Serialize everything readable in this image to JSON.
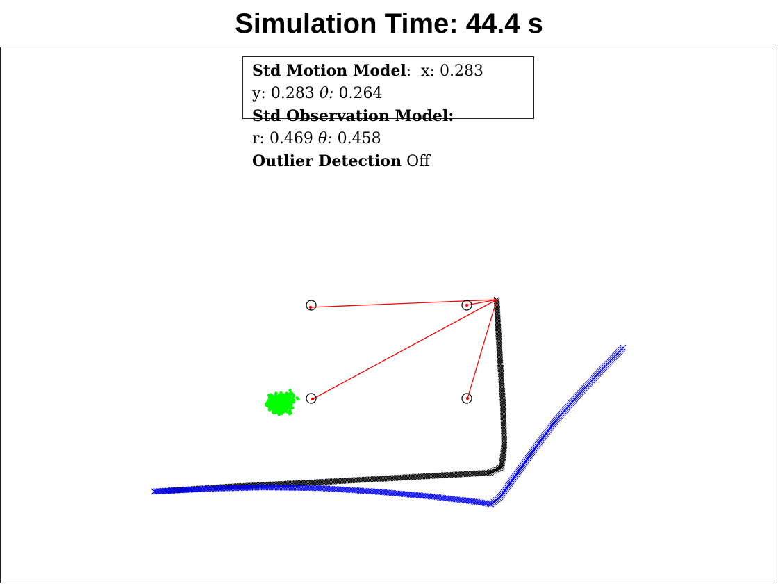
{
  "title": "Simulation Time: 44.4 s",
  "info": {
    "motion_label": "Std Motion Model",
    "motion_x_label": "x:",
    "motion_x": "0.283",
    "motion_y_label": "y:",
    "motion_y": "0.283",
    "motion_theta_label": "θ:",
    "motion_theta": "0.264",
    "observation_label": "Std Observation Model:",
    "obs_r_label": "r:",
    "obs_r": "0.469",
    "obs_theta_label": "θ:",
    "obs_theta": "0.458",
    "outlier_label": "Outlier Detection",
    "outlier_value": "Off"
  },
  "colors": {
    "estimate": "#0000ff",
    "ground_truth": "#000000",
    "observation": "#ff0000",
    "particles": "#00ff00",
    "landmark": "#000000"
  },
  "chart_data": {
    "type": "scatter",
    "xlim": [
      0,
      1120
    ],
    "ylim": [
      840,
      67
    ],
    "grid": false,
    "landmarks": [
      {
        "x": 448,
        "y": 439
      },
      {
        "x": 672,
        "y": 439
      },
      {
        "x": 448,
        "y": 573
      },
      {
        "x": 672,
        "y": 573
      }
    ],
    "robot_position": {
      "x": 715,
      "y": 431
    },
    "observations": [
      {
        "x": 447,
        "y": 442
      },
      {
        "x": 672,
        "y": 439
      },
      {
        "x": 450,
        "y": 574
      },
      {
        "x": 673,
        "y": 573
      }
    ],
    "particle_cloud": {
      "center_x": 404,
      "center_y": 580,
      "spread_x": 34,
      "spread_y": 22,
      "count": 500
    },
    "ground_truth_path": [
      {
        "x": 222,
        "y": 707
      },
      {
        "x": 330,
        "y": 700
      },
      {
        "x": 450,
        "y": 694
      },
      {
        "x": 560,
        "y": 688
      },
      {
        "x": 650,
        "y": 683
      },
      {
        "x": 705,
        "y": 680
      },
      {
        "x": 722,
        "y": 672
      },
      {
        "x": 726,
        "y": 640
      },
      {
        "x": 724,
        "y": 580
      },
      {
        "x": 720,
        "y": 520
      },
      {
        "x": 717,
        "y": 470
      },
      {
        "x": 715,
        "y": 431
      }
    ],
    "estimate_path": [
      {
        "x": 222,
        "y": 707
      },
      {
        "x": 300,
        "y": 703
      },
      {
        "x": 380,
        "y": 701
      },
      {
        "x": 460,
        "y": 702
      },
      {
        "x": 540,
        "y": 707
      },
      {
        "x": 620,
        "y": 714
      },
      {
        "x": 680,
        "y": 721
      },
      {
        "x": 707,
        "y": 725
      },
      {
        "x": 720,
        "y": 715
      },
      {
        "x": 745,
        "y": 680
      },
      {
        "x": 770,
        "y": 645
      },
      {
        "x": 800,
        "y": 605
      },
      {
        "x": 840,
        "y": 560
      },
      {
        "x": 870,
        "y": 528
      },
      {
        "x": 897,
        "y": 500
      }
    ]
  }
}
